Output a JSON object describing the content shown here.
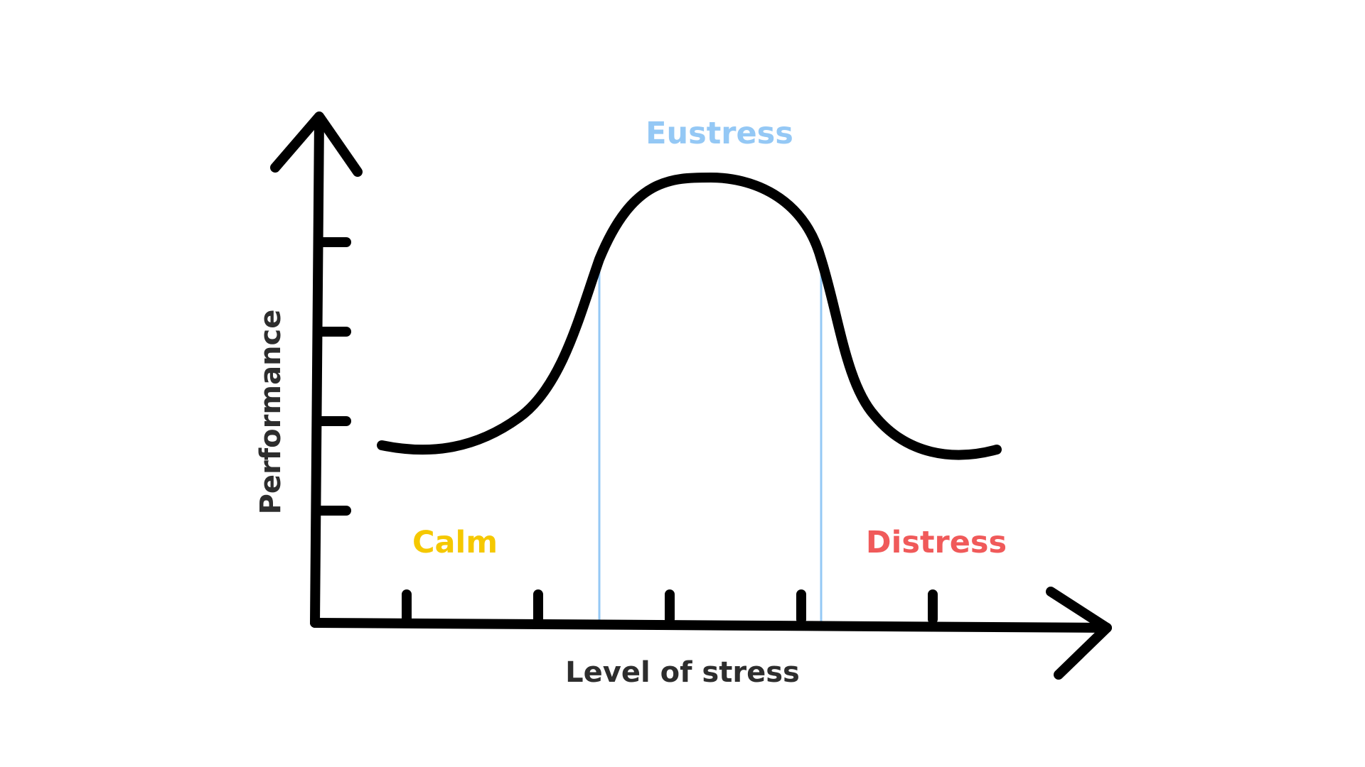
{
  "diagram": {
    "x_axis_label": "Level of stress",
    "y_axis_label": "Performance",
    "zones": [
      {
        "id": "calm",
        "label": "Calm",
        "color": "#f5c800"
      },
      {
        "id": "eustress",
        "label": "Eustress",
        "color": "#94c8f5"
      },
      {
        "id": "distress",
        "label": "Distress",
        "color": "#f05a5a"
      }
    ],
    "colors": {
      "axis": "#000000",
      "curve": "#000000",
      "boundary": "#94c8f5",
      "axis_label": "#2d2d2d"
    },
    "x_ticks_count": 5,
    "y_ticks_count": 4
  }
}
